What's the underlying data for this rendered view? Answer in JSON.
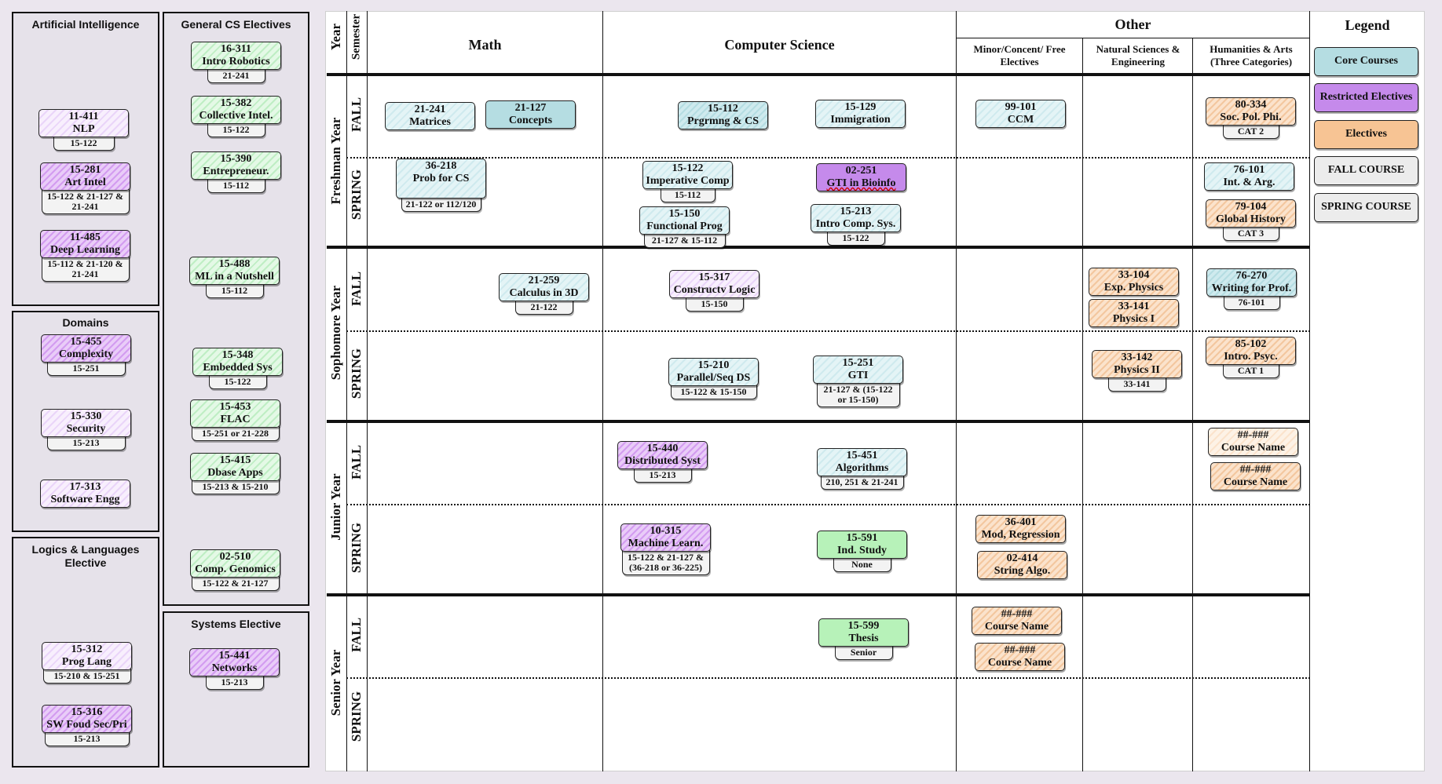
{
  "colors": {
    "core": "#b5dde2",
    "restricted": "#c58aeb",
    "electives": "#f3c79f",
    "green": "#b7f2b9",
    "fall": "#ececec",
    "spring": "#ececec"
  },
  "sidebar": {
    "ai": {
      "title": "Artificial Intelligence"
    },
    "gen": {
      "title": "General CS Electives"
    },
    "dom": {
      "title": "Domains"
    },
    "logic": {
      "title": "Logics & Languages Elective"
    },
    "sys": {
      "title": "Systems Elective"
    }
  },
  "table": {
    "year": "Year",
    "semester": "Semester",
    "math": "Math",
    "cs": "Computer Science",
    "other": "Other",
    "minor": "Minor/Concent/ Free Electives",
    "natsci": "Natural Sciences & Engineering",
    "hum": "Humanities & Arts (Three Categories)",
    "legend": "Legend",
    "years": [
      "Freshman Year",
      "Sophomore Year",
      "Junior Year",
      "Senior Year"
    ],
    "fall": "FALL",
    "spring": "SPRING"
  },
  "legend": [
    "Core Courses",
    "Restricted Electives",
    "Electives",
    "FALL COURSE",
    "SPRING COURSE"
  ],
  "courses": [
    {
      "name": "course-11-411",
      "num": "11-411",
      "title": "NLP",
      "tag": "15-122"
    },
    {
      "name": "course-15-281",
      "num": "15-281",
      "title": "Art Intel",
      "tag": "15-122 & 21-127 & 21-241"
    },
    {
      "name": "course-11-485",
      "num": "11-485",
      "title": "Deep Learning",
      "tag": "15-112 & 21-120 & 21-241"
    },
    {
      "name": "course-15-455",
      "num": "15-455",
      "title": "Complexity",
      "tag": "15-251"
    },
    {
      "name": "course-15-330",
      "num": "15-330",
      "title": "Security",
      "tag": "15-213"
    },
    {
      "name": "course-17-313",
      "num": "17-313",
      "title": "Software Engg",
      "tag": ""
    },
    {
      "name": "course-15-312",
      "num": "15-312",
      "title": "Prog Lang",
      "tag": "15-210 & 15-251"
    },
    {
      "name": "course-15-316",
      "num": "15-316",
      "title": "SW Foud Sec/Pri",
      "tag": "15-213"
    },
    {
      "name": "course-16-311",
      "num": "16-311",
      "title": "Intro Robotics",
      "tag": "21-241"
    },
    {
      "name": "course-15-382",
      "num": "15-382",
      "title": "Collective Intel.",
      "tag": "15-122"
    },
    {
      "name": "course-15-390",
      "num": "15-390",
      "title": "Entrepreneur.",
      "tag": "15-112"
    },
    {
      "name": "course-15-488",
      "num": "15-488",
      "title": "ML in a Nutshell",
      "tag": "15-112"
    },
    {
      "name": "course-15-348",
      "num": "15-348",
      "title": "Embedded Sys",
      "tag": "15-122"
    },
    {
      "name": "course-15-453",
      "num": "15-453",
      "title": "FLAC",
      "tag": "15-251 or 21-228"
    },
    {
      "name": "course-15-415",
      "num": "15-415",
      "title": "Dbase Apps",
      "tag": "15-213 & 15-210"
    },
    {
      "name": "course-02-510",
      "num": "02-510",
      "title": "Comp. Genomics",
      "tag": "15-122 & 21-127"
    },
    {
      "name": "course-15-441",
      "num": "15-441",
      "title": "Networks",
      "tag": "15-213"
    },
    {
      "name": "course-21-241",
      "num": "21-241",
      "title": "Matrices",
      "tag": ""
    },
    {
      "name": "course-21-127",
      "num": "21-127",
      "title": "Concepts",
      "tag": ""
    },
    {
      "name": "course-15-112",
      "num": "15-112",
      "title": "Prgrmng & CS",
      "tag": ""
    },
    {
      "name": "course-15-129",
      "num": "15-129",
      "title": "Immigration",
      "tag": ""
    },
    {
      "name": "course-99-101",
      "num": "99-101",
      "title": "CCM",
      "tag": ""
    },
    {
      "name": "course-80-334",
      "num": "80-334",
      "title": "Soc. Pol. Phi.",
      "tag": "CAT 2"
    },
    {
      "name": "course-36-218",
      "num": "36-218",
      "title": "Prob for CS",
      "tag": "21-122 or 112/120"
    },
    {
      "name": "course-15-122",
      "num": "15-122",
      "title": "Imperative Comp",
      "tag": "15-112"
    },
    {
      "name": "course-02-251",
      "num": "02-251",
      "title": "GTI in Bioinfo",
      "tag": ""
    },
    {
      "name": "course-76-101",
      "num": "76-101",
      "title": "Int. & Arg.",
      "tag": ""
    },
    {
      "name": "course-79-104",
      "num": "79-104",
      "title": "Global History",
      "tag": "CAT 3"
    },
    {
      "name": "course-15-150",
      "num": "15-150",
      "title": "Functional Prog",
      "tag": "21-127 & 15-112"
    },
    {
      "name": "course-15-213",
      "num": "15-213",
      "title": "Intro Comp. Sys.",
      "tag": "15-122"
    },
    {
      "name": "course-21-259",
      "num": "21-259",
      "title": "Calculus in 3D",
      "tag": "21-122"
    },
    {
      "name": "course-15-317",
      "num": "15-317",
      "title": "Constructv Logic",
      "tag": "15-150"
    },
    {
      "name": "course-33-104",
      "num": "33-104",
      "title": "Exp. Physics",
      "tag": ""
    },
    {
      "name": "course-33-141",
      "num": "33-141",
      "title": "Physics I",
      "tag": ""
    },
    {
      "name": "course-76-270",
      "num": "76-270",
      "title": "Writing for Prof.",
      "tag": "76-101"
    },
    {
      "name": "course-15-210",
      "num": "15-210",
      "title": "Parallel/Seq DS",
      "tag": "15-122 & 15-150"
    },
    {
      "name": "course-15-251",
      "num": "15-251",
      "title": "GTI",
      "tag": "21-127 & (15-122 or 15-150)"
    },
    {
      "name": "course-33-142",
      "num": "33-142",
      "title": "Physics II",
      "tag": "33-141"
    },
    {
      "name": "course-85-102",
      "num": "85-102",
      "title": "Intro. Psyc.",
      "tag": "CAT 1"
    },
    {
      "name": "course-15-440",
      "num": "15-440",
      "title": "Distributed Syst",
      "tag": "15-213"
    },
    {
      "name": "course-15-451",
      "num": "15-451",
      "title": "Algorithms",
      "tag": "210, 251 & 21-241"
    },
    {
      "name": "course-hum-a",
      "num": "##-###",
      "title": "Course Name",
      "tag": ""
    },
    {
      "name": "course-hum-b",
      "num": "##-###",
      "title": "Course Name",
      "tag": ""
    },
    {
      "name": "course-36-401",
      "num": "36-401",
      "title": "Mod, Regression",
      "tag": ""
    },
    {
      "name": "course-02-414",
      "num": "02-414",
      "title": "String Algo.",
      "tag": ""
    },
    {
      "name": "course-10-315",
      "num": "10-315",
      "title": "Machine Learn.",
      "tag": "15-122 & 21-127 & (36-218 or 36-225)"
    },
    {
      "name": "course-15-591",
      "num": "15-591",
      "title": "Ind. Study",
      "tag": "None"
    },
    {
      "name": "course-15-599",
      "num": "15-599",
      "title": "Thesis",
      "tag": "Senior"
    },
    {
      "name": "course-minor-a",
      "num": "##-###",
      "title": "Course Name",
      "tag": ""
    },
    {
      "name": "course-minor-b",
      "num": "##-###",
      "title": "Course Name",
      "tag": ""
    }
  ]
}
